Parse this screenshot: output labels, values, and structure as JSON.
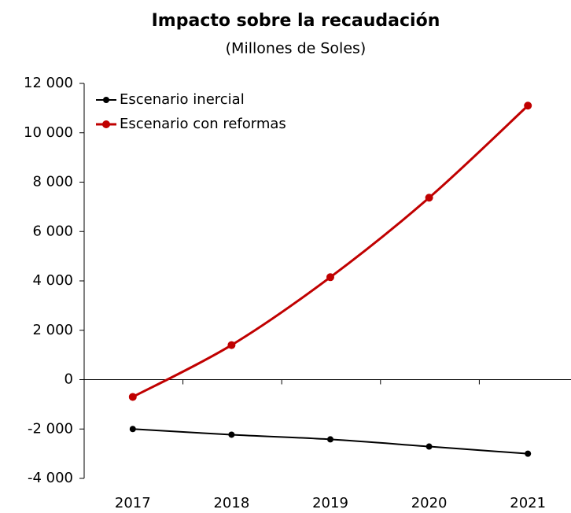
{
  "chart_data": {
    "type": "line",
    "title": "Impacto sobre la recaudación",
    "subtitle": "(Millones de Soles)",
    "categories": [
      "2017",
      "2018",
      "2019",
      "2020",
      "2021"
    ],
    "series": [
      {
        "name": "Escenario inercial",
        "color": "#000000",
        "values": [
          -2000,
          -2230,
          -2420,
          -2710,
          -3000
        ]
      },
      {
        "name": "Escenario con reformas",
        "color": "#c00000",
        "values": [
          -700,
          1400,
          4150,
          7370,
          11100
        ]
      }
    ],
    "ylim": [
      -4000,
      12000
    ],
    "yticks": [
      {
        "value": -4000,
        "label": "-4 000"
      },
      {
        "value": -2000,
        "label": "-2 000"
      },
      0,
      {
        "value": 2000,
        "label": "2 000"
      },
      {
        "value": 4000,
        "label": "4 000"
      },
      {
        "value": 6000,
        "label": "6 000"
      },
      {
        "value": 8000,
        "label": "8 000"
      },
      {
        "value": 10000,
        "label": "10 000"
      },
      {
        "value": 12000,
        "label": "12 000"
      }
    ],
    "grid": false,
    "legend": "top-left"
  }
}
